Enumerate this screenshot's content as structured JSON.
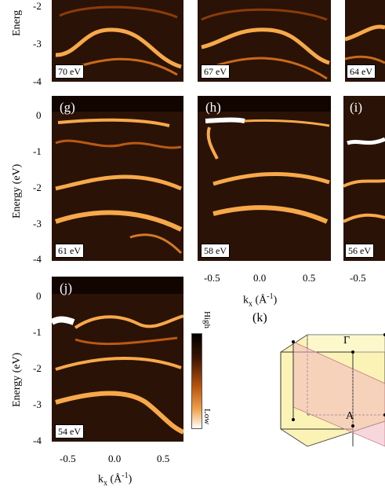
{
  "figure": {
    "energy_axis_label": "Energy (eV)",
    "energy_axis_label_clipped": "Energ",
    "kx_axis_label": "k",
    "kx_sub": "x",
    "kx_unit": "(Å",
    "kx_unit_sup": "-1",
    "kx_unit_close": ")",
    "colorbar_high": "High",
    "colorbar_low": "Low",
    "k_label": "(k)",
    "bz_gamma": "Γ",
    "bz_a": "A"
  },
  "rows": {
    "top": {
      "energy_ticks": [
        "-2",
        "-3",
        "-4"
      ]
    },
    "middle": {
      "energy_ticks": [
        "0",
        "-1",
        "-2",
        "-3",
        "-4"
      ]
    },
    "bottom": {
      "energy_ticks": [
        "0",
        "-1",
        "-2",
        "-3",
        "-4"
      ]
    }
  },
  "panels": [
    {
      "id": "p70",
      "letter": "",
      "energy": "70 eV"
    },
    {
      "id": "p67",
      "letter": "",
      "energy": "67 eV"
    },
    {
      "id": "p64",
      "letter": "",
      "energy": "64 eV"
    },
    {
      "id": "g",
      "letter": "(g)",
      "energy": "61 eV"
    },
    {
      "id": "h",
      "letter": "(h)",
      "energy": "58 eV"
    },
    {
      "id": "i",
      "letter": "(i)",
      "energy": "56 eV"
    },
    {
      "id": "j",
      "letter": "(j)",
      "energy": "54 eV"
    }
  ],
  "kx_ticks_mid": [
    "-0.5",
    "0.0",
    "0.5"
  ],
  "kx_ticks_right": [
    "-0.5"
  ],
  "kx_ticks_bottom": [
    "-0.5",
    "0.0",
    "0.5"
  ],
  "colors": {
    "band": "#f7a94a",
    "band_hot": "#ffffff",
    "bg": "#2a1206",
    "bz_face": "#fbf3b6",
    "bz_plane": "#f2b7c0"
  }
}
